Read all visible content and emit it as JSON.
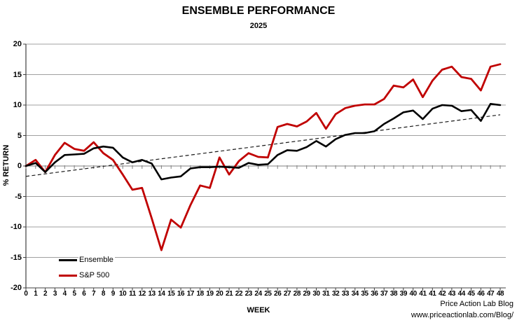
{
  "header": {
    "title": "ENSEMBLE PERFORMANCE",
    "subtitle": "2025"
  },
  "footer": {
    "line1": "Price Action Lab Blog",
    "line2": "www.priceactionlab.com/Blog/"
  },
  "colors": {
    "ensemble": "#000000",
    "sp500": "#c00000",
    "grid": "#a0a0a0",
    "zero_line": "#7f7f7f",
    "axis": "#404040",
    "trend": "#1a1a1a"
  },
  "chart_data": {
    "type": "line",
    "title": "ENSEMBLE PERFORMANCE",
    "subtitle": "2025",
    "xlabel": "WEEK",
    "ylabel": "% RETURN",
    "ylim": [
      -20,
      20
    ],
    "y_ticks": [
      20,
      15,
      10,
      5,
      0,
      -5,
      -10,
      -15,
      -20
    ],
    "grid": "horizontal",
    "legend_position": "inside-bottom-left",
    "x_tick_labels": [
      "0",
      "1",
      "2",
      "3",
      "4",
      "5",
      "6",
      "7",
      "8",
      "9",
      "10",
      "11",
      "12",
      "13",
      "14",
      "15",
      "16",
      "17",
      "18",
      "19",
      "20",
      "21",
      "22",
      "23",
      "24",
      "25",
      "26",
      "27",
      "28",
      "29",
      "30",
      "31",
      "32",
      "33",
      "34",
      "35",
      "36",
      "37",
      "38",
      "39",
      "40",
      "41",
      "41",
      "42",
      "43",
      "44",
      "45",
      "46",
      "47",
      "48"
    ],
    "series": [
      {
        "name": "Ensemble",
        "color": "#000000",
        "values": [
          0.0,
          0.5,
          -1.0,
          0.6,
          1.8,
          1.9,
          2.0,
          2.9,
          3.2,
          3.0,
          1.4,
          0.6,
          1.0,
          0.4,
          -2.2,
          -1.9,
          -1.7,
          -0.4,
          -0.2,
          -0.2,
          -0.1,
          -0.2,
          -0.3,
          0.5,
          0.2,
          0.3,
          1.8,
          2.6,
          2.5,
          3.1,
          4.1,
          3.2,
          4.4,
          5.1,
          5.4,
          5.4,
          5.7,
          6.9,
          7.8,
          8.8,
          9.1,
          7.7,
          9.4,
          10.0,
          9.9,
          9.0,
          9.2,
          7.4,
          10.2,
          10.0
        ]
      },
      {
        "name": "S&P 500",
        "color": "#c00000",
        "values": [
          0.0,
          1.0,
          -1.0,
          1.8,
          3.8,
          2.8,
          2.5,
          3.9,
          2.1,
          1.0,
          -1.4,
          -3.9,
          -3.6,
          -8.6,
          -13.8,
          -8.8,
          -10.1,
          -6.4,
          -3.2,
          -3.6,
          1.4,
          -1.4,
          0.8,
          2.1,
          1.5,
          1.4,
          6.4,
          6.9,
          6.5,
          7.3,
          8.7,
          6.1,
          8.5,
          9.5,
          9.9,
          10.1,
          10.1,
          11.0,
          13.2,
          12.9,
          14.2,
          11.3,
          14.0,
          15.8,
          16.3,
          14.6,
          14.3,
          12.4,
          16.3,
          16.7
        ]
      }
    ],
    "trend_line": {
      "style": "dashed",
      "start_value": -1.7,
      "end_value": 8.4
    }
  }
}
